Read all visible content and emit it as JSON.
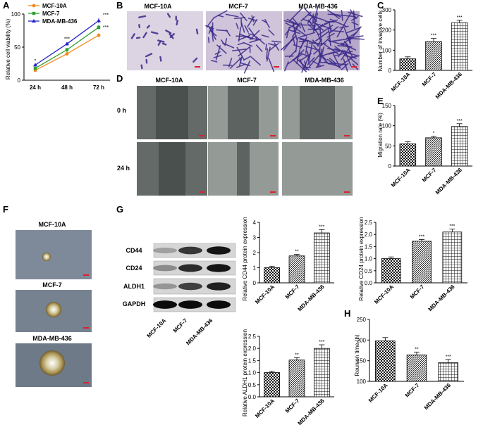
{
  "panels": {
    "A": "A",
    "B": "B",
    "C": "C",
    "D": "D",
    "E": "E",
    "F": "F",
    "G": "G",
    "H": "H"
  },
  "colors": {
    "mcf10a": "#f28a1e",
    "mcf7": "#2ca02c",
    "mdamb436": "#2222cc",
    "crystal_violet": "#3a2a8a",
    "scale_bar": "#e0202a"
  },
  "cell_lines": [
    "MCF-10A",
    "MCF-7",
    "MDA-MB-436"
  ],
  "photo_row_labels": {
    "h0": "0 h",
    "h24": "24 h"
  },
  "wb": {
    "bands": [
      "CD44",
      "CD24",
      "ALDH1",
      "GAPDH"
    ],
    "lanes": [
      "MCF-10A",
      "MCF-7",
      "MDA-MB-436"
    ]
  },
  "chart_data": [
    {
      "id": "A",
      "type": "line",
      "xlabel": "",
      "ylabel": "Relative cell viability (%)",
      "categories": [
        "24 h",
        "48 h",
        "72 h"
      ],
      "ylim": [
        0,
        100
      ],
      "yticks": [
        0,
        50,
        100
      ],
      "series": [
        {
          "name": "MCF-10A",
          "color": "#f28a1e",
          "marker": "circle",
          "values": [
            15,
            40,
            68
          ],
          "errors": [
            2,
            3,
            3
          ],
          "sig": [
            "",
            "",
            ""
          ]
        },
        {
          "name": "MCF-7",
          "color": "#2ca02c",
          "marker": "square",
          "values": [
            18,
            46,
            80
          ],
          "errors": [
            2,
            3,
            4
          ],
          "sig": [
            "",
            "*",
            "***"
          ]
        },
        {
          "name": "MDA-MB-436",
          "color": "#2222cc",
          "marker": "triangle",
          "values": [
            23,
            55,
            90
          ],
          "errors": [
            2,
            3,
            4
          ],
          "sig": [
            "*",
            "***",
            "***"
          ]
        }
      ]
    },
    {
      "id": "C",
      "type": "bar",
      "ylabel": "Number of invasive cells",
      "categories": [
        "MCF-10A",
        "MCF-7",
        "MDA-MB-436"
      ],
      "values": [
        57,
        143,
        236
      ],
      "errors": [
        10,
        15,
        12
      ],
      "sig": [
        "",
        "***",
        "***"
      ],
      "ylim": [
        0,
        300
      ],
      "yticks": [
        0,
        100,
        200,
        300
      ]
    },
    {
      "id": "E",
      "type": "bar",
      "ylabel": "Migration rate (%)",
      "categories": [
        "MCF-10A",
        "MCF-7",
        "MDA-MB-436"
      ],
      "values": [
        55,
        70,
        98
      ],
      "errors": [
        5,
        4,
        7
      ],
      "sig": [
        "",
        "*",
        "***"
      ],
      "ylim": [
        0,
        150
      ],
      "yticks": [
        0,
        50,
        100,
        150
      ]
    },
    {
      "id": "G1",
      "type": "bar",
      "ylabel": "Relative CD44 protein expression",
      "categories": [
        "MCF-10A",
        "MCF-7",
        "MDA-MB-436"
      ],
      "values": [
        1.0,
        1.78,
        3.3
      ],
      "errors": [
        0.1,
        0.1,
        0.22
      ],
      "sig": [
        "",
        "**",
        "***"
      ],
      "ylim": [
        0,
        4
      ],
      "yticks": [
        0,
        1,
        2,
        3,
        4
      ]
    },
    {
      "id": "G2",
      "type": "bar",
      "ylabel": "Relative CD24 protein expression",
      "categories": [
        "MCF-10A",
        "MCF-7",
        "MDA-MB-436"
      ],
      "values": [
        1.0,
        1.72,
        2.1
      ],
      "errors": [
        0.07,
        0.07,
        0.12
      ],
      "sig": [
        "",
        "***",
        "***"
      ],
      "ylim": [
        0,
        2.5
      ],
      "yticks": [
        0.0,
        0.5,
        1.0,
        1.5,
        2.0,
        2.5
      ]
    },
    {
      "id": "G3",
      "type": "bar",
      "ylabel": "Relative ALDH1 protein expression",
      "categories": [
        "MCF-10A",
        "MCF-7",
        "MDA-MB-436"
      ],
      "values": [
        1.0,
        1.52,
        2.0
      ],
      "errors": [
        0.06,
        0.1,
        0.15
      ],
      "sig": [
        "",
        "**",
        "***"
      ],
      "ylim": [
        0,
        2.5
      ],
      "yticks": [
        0.0,
        0.5,
        1.0,
        1.5,
        2.0,
        2.5
      ]
    },
    {
      "id": "H",
      "type": "bar",
      "ylabel": "Reunion time (h)",
      "categories": [
        "MCF-10A",
        "MCF-7",
        "MDA-MB-436"
      ],
      "values": [
        198,
        164,
        145
      ],
      "errors": [
        8,
        7,
        8
      ],
      "sig": [
        "",
        "**",
        "***"
      ],
      "ylim": [
        100,
        250
      ],
      "yticks": [
        100,
        150,
        200,
        250
      ]
    }
  ]
}
